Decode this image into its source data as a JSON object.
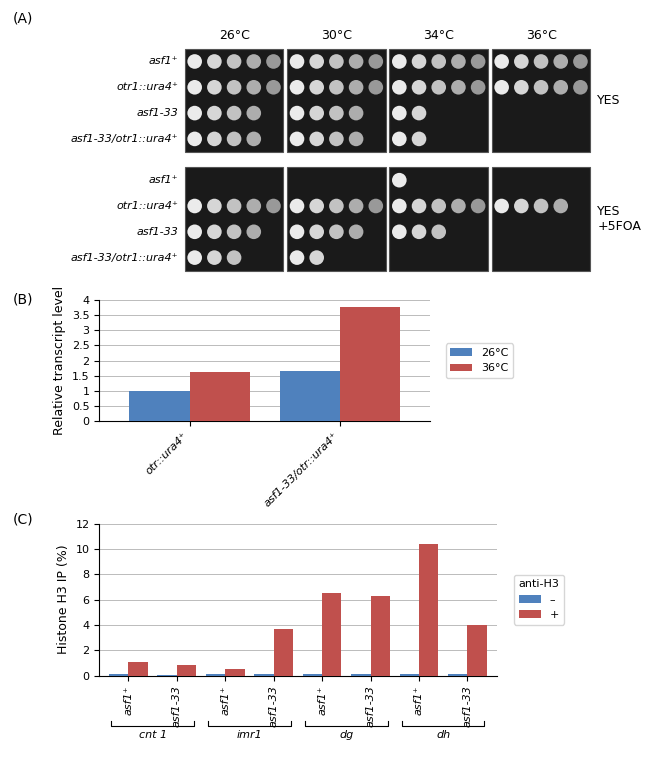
{
  "panel_a": {
    "label": "(A)",
    "temperatures": [
      "26°C",
      "30°C",
      "34°C",
      "36°C"
    ],
    "strains": [
      "asf1⁺",
      "otr1::ura4⁺",
      "asf1-33",
      "asf1-33/otr1::ura4⁺"
    ],
    "plates": [
      {
        "medium": "YES",
        "spots": [
          [
            5,
            5,
            5,
            5
          ],
          [
            5,
            5,
            5,
            5
          ],
          [
            4,
            4,
            2,
            0
          ],
          [
            4,
            4,
            2,
            0
          ]
        ]
      },
      {
        "medium": "YES\n+5FOA",
        "spots": [
          [
            0,
            0,
            1,
            0
          ],
          [
            5,
            5,
            5,
            4
          ],
          [
            4,
            4,
            3,
            0
          ],
          [
            3,
            2,
            0,
            0
          ]
        ]
      }
    ]
  },
  "chart_data": [
    {
      "type": "bar",
      "label": "(B)",
      "categories": [
        "otr::ura4⁺",
        "asf1-33/otr::ura4⁺"
      ],
      "series": [
        {
          "name": "26°C",
          "color": "#4f81bd",
          "values": [
            1.0,
            1.65
          ]
        },
        {
          "name": "36°C",
          "color": "#c0504d",
          "values": [
            1.62,
            3.75
          ]
        }
      ],
      "y_label": "Relative transcript level",
      "ylim": [
        0,
        4
      ],
      "yticks": [
        0,
        0.5,
        1,
        1.5,
        2,
        2.5,
        3,
        3.5,
        4
      ],
      "grid": true,
      "legend": "right"
    },
    {
      "type": "bar",
      "label": "(C)",
      "categories": [
        "asf1⁺",
        "asf1-33",
        "asf1⁺",
        "asf1-33",
        "asf1⁺",
        "asf1-33",
        "asf1⁺",
        "asf1-33"
      ],
      "groups": [
        "cnt 1",
        "imr1",
        "dg",
        "dh"
      ],
      "series": [
        {
          "name": "–",
          "color": "#4f81bd",
          "values": [
            0.1,
            0.05,
            0.1,
            0.1,
            0.1,
            0.1,
            0.1,
            0.1
          ]
        },
        {
          "name": "+",
          "color": "#c0504d",
          "values": [
            1.1,
            0.8,
            0.5,
            3.7,
            6.5,
            6.3,
            10.4,
            4.0
          ]
        }
      ],
      "y_label": "Histone H3 IP (%)",
      "ylim": [
        0,
        12
      ],
      "yticks": [
        0,
        2,
        4,
        6,
        8,
        10,
        12
      ],
      "grid": true,
      "legend": "right",
      "legend_title": "anti-H3"
    }
  ]
}
